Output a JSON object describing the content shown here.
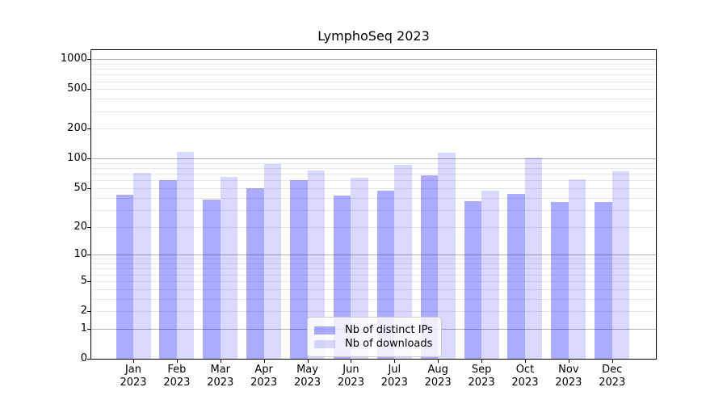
{
  "chart_data": {
    "type": "bar",
    "title": "LymphoSeq 2023",
    "yscale": "log1p",
    "grid": true,
    "legend_position": "lower center",
    "xlabel": "",
    "ylabel": "",
    "categories": [
      "Jan 2023",
      "Feb 2023",
      "Mar 2023",
      "Apr 2023",
      "May 2023",
      "Jun 2023",
      "Jul 2023",
      "Aug 2023",
      "Sep 2023",
      "Oct 2023",
      "Nov 2023",
      "Dec 2023"
    ],
    "series": [
      {
        "name": "Nb of distinct IPs",
        "color": "rgba(0,0,255,0.33)",
        "values": [
          43,
          60,
          38,
          50,
          60,
          42,
          47,
          68,
          37,
          44,
          36,
          36
        ]
      },
      {
        "name": "Nb of downloads",
        "color": "rgba(0,0,255,0.15)",
        "values": [
          72,
          117,
          65,
          88,
          76,
          64,
          86,
          115,
          47,
          102,
          61,
          75
        ]
      }
    ],
    "y_ticks": [
      0,
      1,
      2,
      5,
      10,
      20,
      50,
      100,
      200,
      500,
      1000
    ],
    "y_axis_max": 1231,
    "major_grid_values": [
      1,
      10,
      100,
      1000
    ],
    "minor_grid_values": [
      2,
      3,
      4,
      5,
      6,
      7,
      8,
      9,
      20,
      30,
      40,
      50,
      60,
      70,
      80,
      90,
      200,
      300,
      400,
      500,
      600,
      700,
      800,
      900
    ],
    "colors": {
      "major_grid": "#b0b0b0",
      "minor_grid": "#e8e8e8",
      "spine": "#000000",
      "bar_distinct_ips": "rgba(0,0,255,0.33)",
      "bar_downloads": "rgba(0,0,255,0.15)",
      "legend_border": "#cccccc"
    }
  }
}
